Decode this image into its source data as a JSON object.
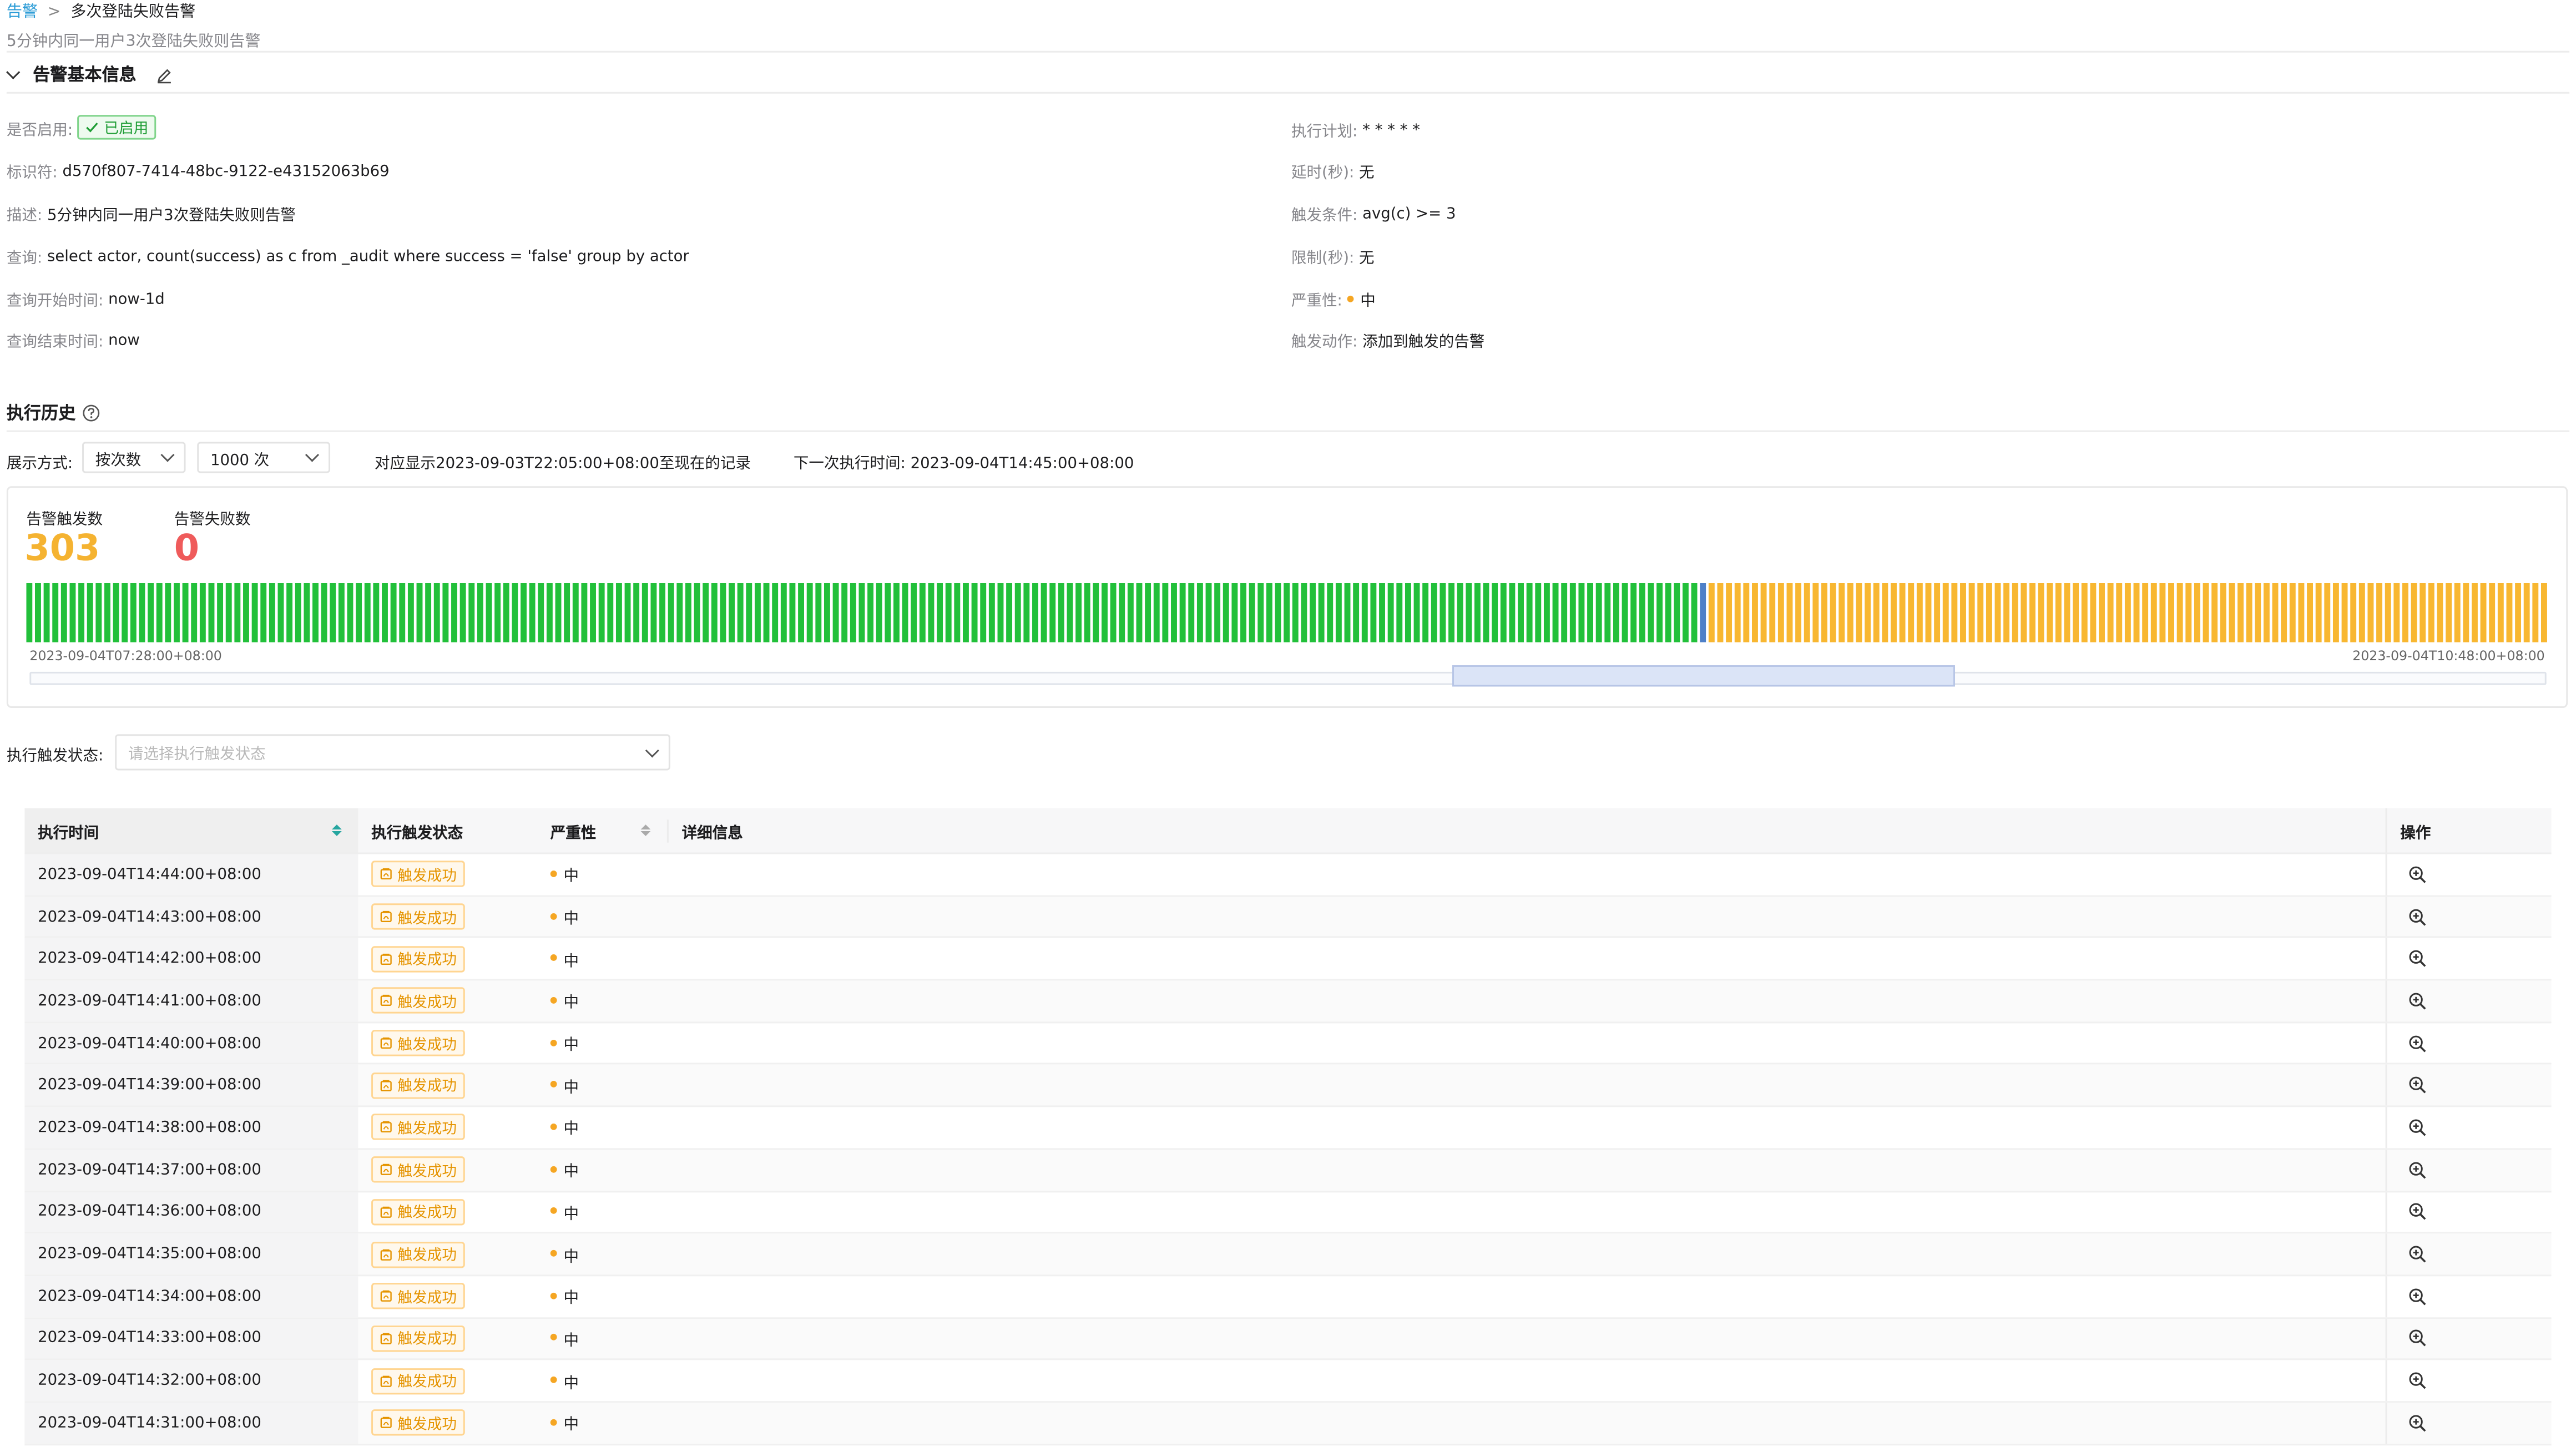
{
  "breadcrumb": {
    "root": "告警",
    "separator": ">",
    "current": "多次登陆失败告警"
  },
  "subtitle": "5分钟内同一用户3次登陆失败则告警",
  "basic_info": {
    "title": "告警基本信息",
    "left": [
      {
        "key": "是否启用:",
        "value": "已启用"
      },
      {
        "key": "标识符:",
        "value": "d570f807-7414-48bc-9122-e43152063b69"
      },
      {
        "key": "描述:",
        "value": "5分钟内同一用户3次登陆失败则告警"
      },
      {
        "key": "查询:",
        "value": "select actor, count(success) as c from _audit where success = 'false' group by actor"
      },
      {
        "key": "查询开始时间:",
        "value": "now-1d"
      },
      {
        "key": "查询结束时间:",
        "value": "now"
      }
    ],
    "right": [
      {
        "key": "执行计划:",
        "value": "* * * * *"
      },
      {
        "key": "延时(秒):",
        "value": "无"
      },
      {
        "key": "触发条件:",
        "value": "avg(c) >= 3"
      },
      {
        "key": "限制(秒):",
        "value": "无"
      },
      {
        "key": "严重性:",
        "value": "中"
      },
      {
        "key": "触发动作:",
        "value": "添加到触发的告警"
      }
    ]
  },
  "history": {
    "title": "执行历史",
    "display_label": "展示方式:",
    "display_mode": "按次数",
    "count_select": "1000 次",
    "range_text": "对应显示2023-09-03T22:05:00+08:00至现在的记录",
    "next_run": "下一次执行时间: 2023-09-04T14:45:00+08:00"
  },
  "stats": {
    "triggered_label": "告警触发数",
    "triggered_value": "303",
    "failed_label": "告警失败数",
    "failed_value": "0"
  },
  "timeline": {
    "start_label": "2023-09-04T07:28:00+08:00",
    "end_label": "2023-09-04T10:48:00+08:00",
    "green_bars": 193,
    "highlight_bars": 1,
    "orange_bars": 97,
    "colors": {
      "green": "#22c03a",
      "highlight": "#4e80c8",
      "orange": "#f8b731"
    },
    "zoom_window": {
      "start": 0.565,
      "end": 0.765
    }
  },
  "filter": {
    "label": "执行触发状态:",
    "placeholder": "请选择执行触发状态"
  },
  "table": {
    "columns": [
      "执行时间",
      "执行触发状态",
      "严重性",
      "详细信息",
      "操作"
    ],
    "rows": [
      {
        "time": "2023-09-04T14:44:00+08:00",
        "status": "触发成功",
        "severity": "中"
      },
      {
        "time": "2023-09-04T14:43:00+08:00",
        "status": "触发成功",
        "severity": "中"
      },
      {
        "time": "2023-09-04T14:42:00+08:00",
        "status": "触发成功",
        "severity": "中"
      },
      {
        "time": "2023-09-04T14:41:00+08:00",
        "status": "触发成功",
        "severity": "中"
      },
      {
        "time": "2023-09-04T14:40:00+08:00",
        "status": "触发成功",
        "severity": "中"
      },
      {
        "time": "2023-09-04T14:39:00+08:00",
        "status": "触发成功",
        "severity": "中"
      },
      {
        "time": "2023-09-04T14:38:00+08:00",
        "status": "触发成功",
        "severity": "中"
      },
      {
        "time": "2023-09-04T14:37:00+08:00",
        "status": "触发成功",
        "severity": "中"
      },
      {
        "time": "2023-09-04T14:36:00+08:00",
        "status": "触发成功",
        "severity": "中"
      },
      {
        "time": "2023-09-04T14:35:00+08:00",
        "status": "触发成功",
        "severity": "中"
      },
      {
        "time": "2023-09-04T14:34:00+08:00",
        "status": "触发成功",
        "severity": "中"
      },
      {
        "time": "2023-09-04T14:33:00+08:00",
        "status": "触发成功",
        "severity": "中"
      },
      {
        "time": "2023-09-04T14:32:00+08:00",
        "status": "触发成功",
        "severity": "中"
      },
      {
        "time": "2023-09-04T14:31:00+08:00",
        "status": "触发成功",
        "severity": "中"
      }
    ]
  },
  "colors": {
    "accent_link": "#2a9bd6",
    "trigger_count": "#f5b331",
    "fail_count": "#ef5b5b",
    "severity_dot": "#f5a623"
  }
}
